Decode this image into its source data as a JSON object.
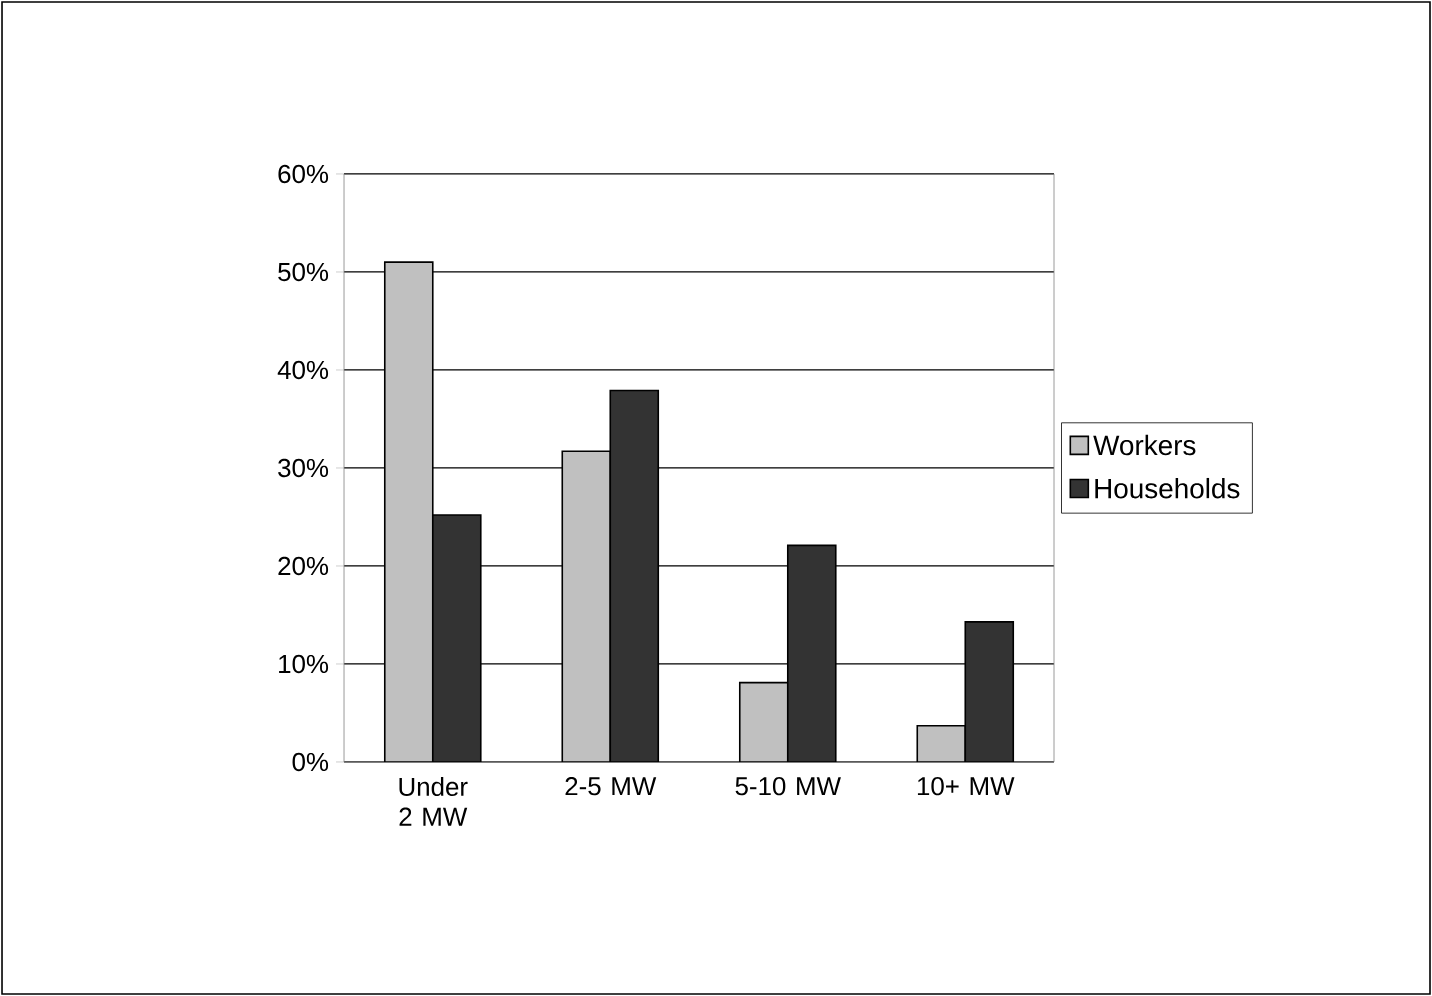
{
  "chart_data": {
    "type": "bar",
    "categories": [
      "Under 2 MW",
      "2-5 MW",
      "5-10 MW",
      "10+ MW"
    ],
    "series": [
      {
        "name": "Workers",
        "color": "#c0c0c0",
        "values": [
          51,
          31.7,
          8.1,
          3.7
        ]
      },
      {
        "name": "Households",
        "color": "#333333",
        "values": [
          25.2,
          37.9,
          22.1,
          14.3
        ]
      }
    ],
    "ylim": [
      0,
      60
    ],
    "yticks": [
      {
        "value": 0,
        "label": "0%"
      },
      {
        "value": 10,
        "label": "10%"
      },
      {
        "value": 20,
        "label": "20%"
      },
      {
        "value": 30,
        "label": "30%"
      },
      {
        "value": 40,
        "label": "40%"
      },
      {
        "value": 50,
        "label": "50%"
      },
      {
        "value": 60,
        "label": "60%"
      }
    ],
    "grid": "y",
    "legend": "right"
  }
}
